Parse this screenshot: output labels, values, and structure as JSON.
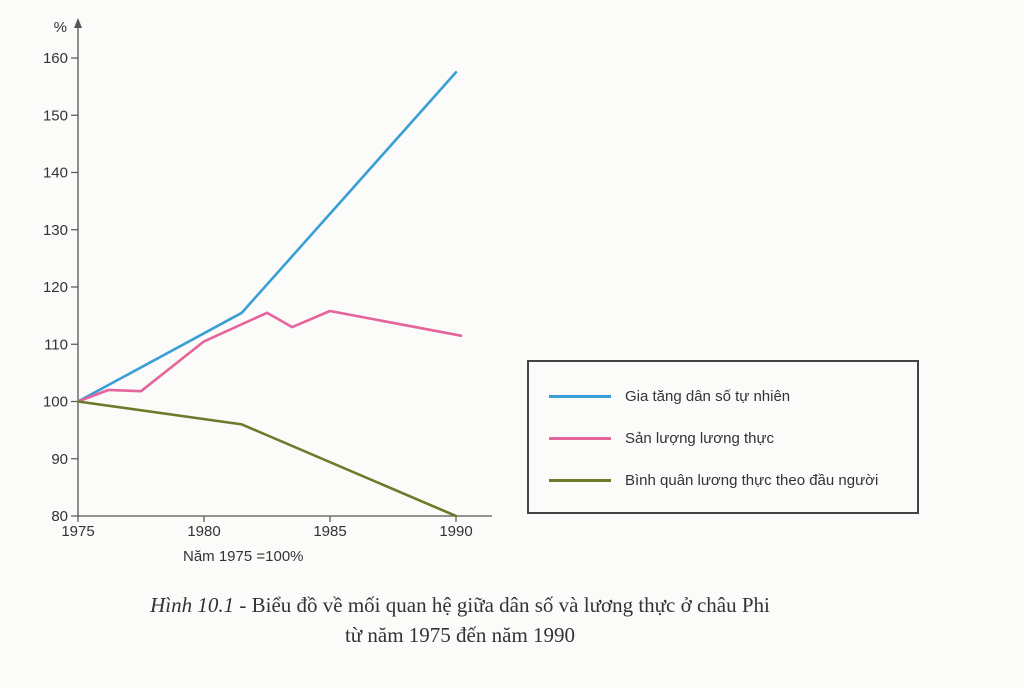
{
  "chart_data": {
    "type": "line",
    "ylabel": "%",
    "x_ticks": [
      1975,
      1980,
      1985,
      1990
    ],
    "y_ticks": [
      80,
      90,
      100,
      110,
      120,
      130,
      140,
      150,
      160
    ],
    "xlim": [
      1975,
      1990
    ],
    "ylim": [
      80,
      165
    ],
    "grid": false,
    "legend_position": "right",
    "series": [
      {
        "name": "Gia tăng dân số tự nhiên",
        "color": "#3a9fd6",
        "x": [
          1975,
          1981.5,
          1990
        ],
        "values": [
          100,
          115.5,
          157.5
        ]
      },
      {
        "name": "Sản lượng lương thực",
        "color": "#e5649c",
        "x": [
          1975,
          1976.2,
          1977.5,
          1980,
          1982.5,
          1983.5,
          1985,
          1990.2
        ],
        "values": [
          100,
          102,
          101.8,
          110.5,
          115.5,
          113,
          115.8,
          111.5
        ]
      },
      {
        "name": "Bình quân lương thực theo đầu người",
        "color": "#6e7a2a",
        "x": [
          1975,
          1981.5,
          1990
        ],
        "values": [
          100,
          96,
          80
        ]
      }
    ]
  },
  "note": "Năm 1975 =100%",
  "caption": {
    "figure": "Hình 10.1",
    "line1": " - Biểu đồ về mối quan hệ giữa dân số và lương thực ở châu Phi",
    "line2": "từ năm 1975 đến năm 1990"
  }
}
